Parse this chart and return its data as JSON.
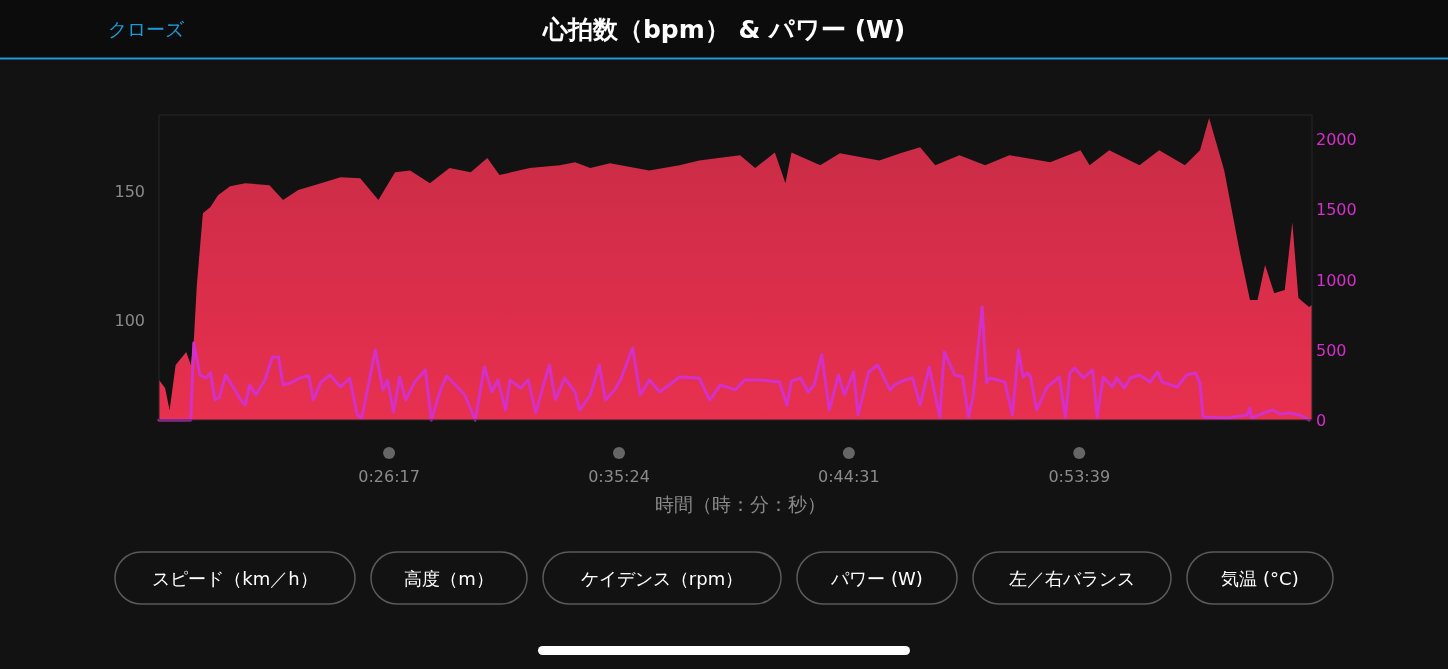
{
  "chart_data": {
    "type": "area",
    "title": "心拍数（bpm） & パワー (W)",
    "xlabel": "時間（時：分：秒）",
    "annotations": [
      "クローズ",
      "スピード（km／h）",
      "高度（m）",
      "ケイデンス（rpm）",
      "パワー (W)",
      "左／右バランス",
      "気温 (°C)"
    ],
    "xlim": [
      0.286,
      1.048
    ],
    "xticks": [
      {
        "value": 0.43806,
        "label": "0:26:17"
      },
      {
        "value": 0.59,
        "label": "0:35:24"
      },
      {
        "value": 0.74194,
        "label": "0:44:31"
      },
      {
        "value": 0.89417,
        "label": "0:53:39"
      }
    ],
    "ylim": [
      61.2,
      179.5
    ],
    "yticks": [
      100,
      150
    ],
    "y2lim": [
      0,
      2171
    ],
    "y2ticks": [
      0,
      500,
      1000,
      1500,
      2000
    ],
    "grid": false,
    "series": [
      {
        "color": "#e8304f",
        "x": [
          0.286,
          0.29,
          0.293,
          0.297,
          0.304,
          0.307,
          0.309,
          0.311,
          0.315,
          0.32,
          0.325,
          0.333,
          0.343,
          0.359,
          0.368,
          0.378,
          0.393,
          0.406,
          0.419,
          0.431,
          0.442,
          0.452,
          0.465,
          0.478,
          0.492,
          0.503,
          0.511,
          0.531,
          0.551,
          0.561,
          0.571,
          0.584,
          0.61,
          0.63,
          0.643,
          0.67,
          0.68,
          0.693,
          0.7,
          0.704,
          0.723,
          0.736,
          0.762,
          0.776,
          0.789,
          0.799,
          0.815,
          0.832,
          0.848,
          0.875,
          0.895,
          0.901,
          0.914,
          0.934,
          0.947,
          0.964,
          0.974,
          0.98,
          0.99,
          1.0,
          1.007,
          1.012,
          1.017,
          1.023,
          1.03,
          1.035,
          1.039,
          1.046,
          1.048
        ],
        "values": [
          76.7,
          73.6,
          65,
          82.5,
          87.6,
          82.5,
          92,
          113.5,
          141.4,
          143.8,
          148.4,
          151.9,
          153,
          152.3,
          146.5,
          150.4,
          153,
          155.4,
          155,
          146.5,
          157.3,
          158,
          153,
          158.9,
          157.3,
          162.8,
          156.2,
          158.9,
          160,
          161.2,
          158.9,
          160.8,
          158,
          160,
          161.9,
          163.9,
          158.9,
          165,
          153,
          165,
          160,
          164.7,
          161.9,
          164.7,
          167,
          160,
          163.9,
          160,
          163.9,
          161.2,
          165.8,
          160,
          165.8,
          160,
          165.8,
          160,
          165.8,
          178.3,
          158,
          127.1,
          107.7,
          107.7,
          121.3,
          110.4,
          111.6,
          137.9,
          108.5,
          105,
          105.8
        ]
      },
      {
        "type": "line",
        "axis": "y2",
        "color": "#d42fc8",
        "x": [
          0.286,
          0.307,
          0.309,
          0.313,
          0.317,
          0.32,
          0.323,
          0.326,
          0.33,
          0.333,
          0.34,
          0.343,
          0.346,
          0.35,
          0.356,
          0.361,
          0.365,
          0.368,
          0.373,
          0.379,
          0.385,
          0.388,
          0.393,
          0.399,
          0.406,
          0.412,
          0.417,
          0.42,
          0.429,
          0.434,
          0.437,
          0.441,
          0.445,
          0.449,
          0.455,
          0.462,
          0.466,
          0.472,
          0.476,
          0.482,
          0.488,
          0.495,
          0.501,
          0.506,
          0.51,
          0.515,
          0.518,
          0.525,
          0.53,
          0.535,
          0.541,
          0.544,
          0.548,
          0.554,
          0.561,
          0.564,
          0.571,
          0.577,
          0.581,
          0.587,
          0.591,
          0.599,
          0.604,
          0.61,
          0.617,
          0.63,
          0.643,
          0.65,
          0.657,
          0.667,
          0.673,
          0.683,
          0.696,
          0.701,
          0.704,
          0.71,
          0.715,
          0.719,
          0.724,
          0.729,
          0.735,
          0.739,
          0.745,
          0.748,
          0.755,
          0.761,
          0.769,
          0.772,
          0.779,
          0.784,
          0.789,
          0.795,
          0.802,
          0.805,
          0.812,
          0.817,
          0.821,
          0.824,
          0.83,
          0.833,
          0.835,
          0.845,
          0.85,
          0.854,
          0.857,
          0.86,
          0.862,
          0.866,
          0.873,
          0.881,
          0.885,
          0.888,
          0.891,
          0.897,
          0.903,
          0.906,
          0.91,
          0.916,
          0.919,
          0.924,
          0.928,
          0.934,
          0.941,
          0.946,
          0.949,
          0.959,
          0.965,
          0.971,
          0.974,
          0.976,
          0.992,
          1.005,
          1.007,
          1.008,
          1.013,
          1.018,
          1.022,
          1.027,
          1.033,
          1.04,
          1.046
        ],
        "values": [
          0,
          0,
          548,
          320,
          299,
          335,
          142,
          164,
          320,
          270,
          142,
          107,
          249,
          178,
          285,
          448,
          448,
          249,
          263,
          299,
          313,
          142,
          270,
          320,
          235,
          299,
          36,
          14,
          498,
          214,
          285,
          57,
          306,
          142,
          270,
          356,
          0,
          214,
          313,
          249,
          178,
          0,
          377,
          199,
          285,
          71,
          285,
          228,
          285,
          50,
          285,
          391,
          142,
          299,
          199,
          71,
          178,
          391,
          142,
          214,
          285,
          512,
          178,
          285,
          199,
          306,
          299,
          142,
          249,
          214,
          285,
          285,
          270,
          107,
          277,
          299,
          199,
          249,
          463,
          71,
          320,
          178,
          342,
          36,
          342,
          391,
          214,
          249,
          285,
          299,
          107,
          377,
          21,
          484,
          320,
          306,
          21,
          164,
          804,
          263,
          299,
          270,
          36,
          498,
          306,
          335,
          306,
          71,
          235,
          306,
          21,
          335,
          370,
          299,
          356,
          21,
          306,
          235,
          299,
          228,
          299,
          320,
          270,
          342,
          270,
          235,
          320,
          335,
          263,
          21,
          14,
          36,
          85,
          14,
          36,
          57,
          71,
          43,
          50,
          36,
          0
        ]
      }
    ]
  }
}
